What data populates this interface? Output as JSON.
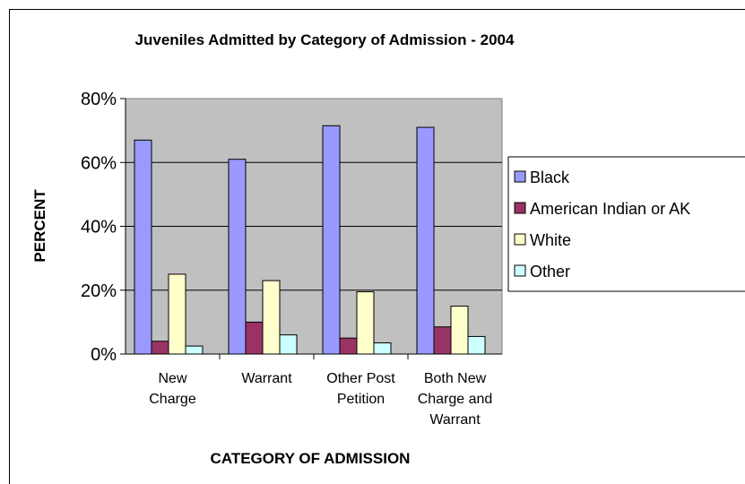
{
  "chart_data": {
    "type": "bar",
    "title": "Juveniles Admitted by Category of Admission - 2004",
    "xlabel": "CATEGORY OF ADMISSION",
    "ylabel": "PERCENT",
    "ylim": [
      0,
      80
    ],
    "y_ticks": [
      "0%",
      "20%",
      "40%",
      "60%",
      "80%"
    ],
    "grid": true,
    "legend_position": "right",
    "categories": [
      [
        "New",
        "Charge"
      ],
      [
        "Warrant"
      ],
      [
        "Other Post",
        "Petition"
      ],
      [
        "Both New",
        "Charge and",
        "Warrant"
      ]
    ],
    "series": [
      {
        "name": "Black",
        "color": "#9999FF",
        "values": [
          67,
          61,
          71.5,
          71
        ]
      },
      {
        "name": "American Indian or AK",
        "color": "#993366",
        "values": [
          4,
          10,
          5,
          8.5
        ]
      },
      {
        "name": "White",
        "color": "#FFFFCC",
        "values": [
          25,
          23,
          19.5,
          15
        ]
      },
      {
        "name": "Other",
        "color": "#CCFFFF",
        "values": [
          2.5,
          6,
          3.5,
          5.5
        ]
      }
    ],
    "plot_background": "#C0C0C0"
  }
}
